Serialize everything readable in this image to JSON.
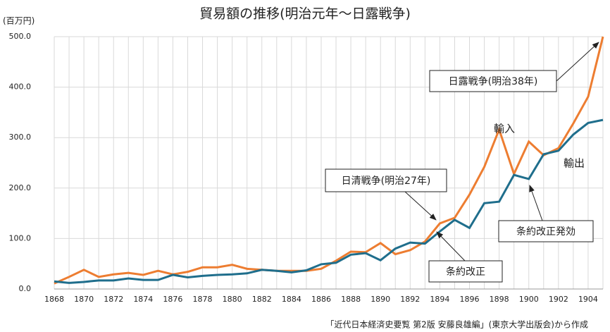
{
  "chart_data": {
    "type": "line",
    "title": "貿易額の推移(明治元年〜日露戦争)",
    "y_label": "(百万円)",
    "source": "「近代日本経済史要覧 第2版 安藤良雄編」(東京大学出版会)から作成",
    "x": [
      1868,
      1869,
      1870,
      1871,
      1872,
      1873,
      1874,
      1875,
      1876,
      1877,
      1878,
      1879,
      1880,
      1881,
      1882,
      1883,
      1884,
      1885,
      1886,
      1887,
      1888,
      1889,
      1890,
      1891,
      1892,
      1893,
      1894,
      1895,
      1896,
      1897,
      1898,
      1899,
      1900,
      1901,
      1902,
      1903,
      1904,
      1905
    ],
    "series": [
      {
        "name": "輸入",
        "color": "#ed7d31",
        "values": [
          11,
          24,
          38,
          24,
          29,
          32,
          28,
          36,
          29,
          34,
          43,
          43,
          48,
          40,
          38,
          36,
          36,
          36,
          40,
          56,
          74,
          73,
          91,
          69,
          77,
          94,
          130,
          141,
          187,
          242,
          316,
          228,
          292,
          265,
          279,
          328,
          381,
          500
        ]
      },
      {
        "name": "輸出",
        "color": "#1f6e8c",
        "values": [
          15,
          12,
          14,
          17,
          17,
          21,
          18,
          18,
          28,
          23,
          26,
          28,
          29,
          31,
          38,
          36,
          33,
          37,
          49,
          52,
          68,
          71,
          57,
          80,
          92,
          90,
          114,
          137,
          121,
          170,
          173,
          226,
          218,
          267,
          274,
          306,
          329,
          335
        ]
      }
    ],
    "xlim": [
      1868,
      1905
    ],
    "xticks": [
      1868,
      1870,
      1872,
      1874,
      1876,
      1878,
      1880,
      1882,
      1884,
      1886,
      1888,
      1890,
      1892,
      1894,
      1896,
      1898,
      1900,
      1902,
      1904
    ],
    "ylim": [
      0,
      500
    ],
    "yticks": [
      {
        "value": 0,
        "label": "0.0"
      },
      {
        "value": 100,
        "label": "100.0"
      },
      {
        "value": 200,
        "label": "200.0"
      },
      {
        "value": 300,
        "label": "300.0"
      },
      {
        "value": 400,
        "label": "400.0"
      },
      {
        "value": 500,
        "label": "500.0"
      }
    ],
    "grid": true,
    "annotations": [
      "日露戦争(明治38年)",
      "日清戦争(明治27年)",
      "条約改正発効",
      "条約改正"
    ]
  }
}
